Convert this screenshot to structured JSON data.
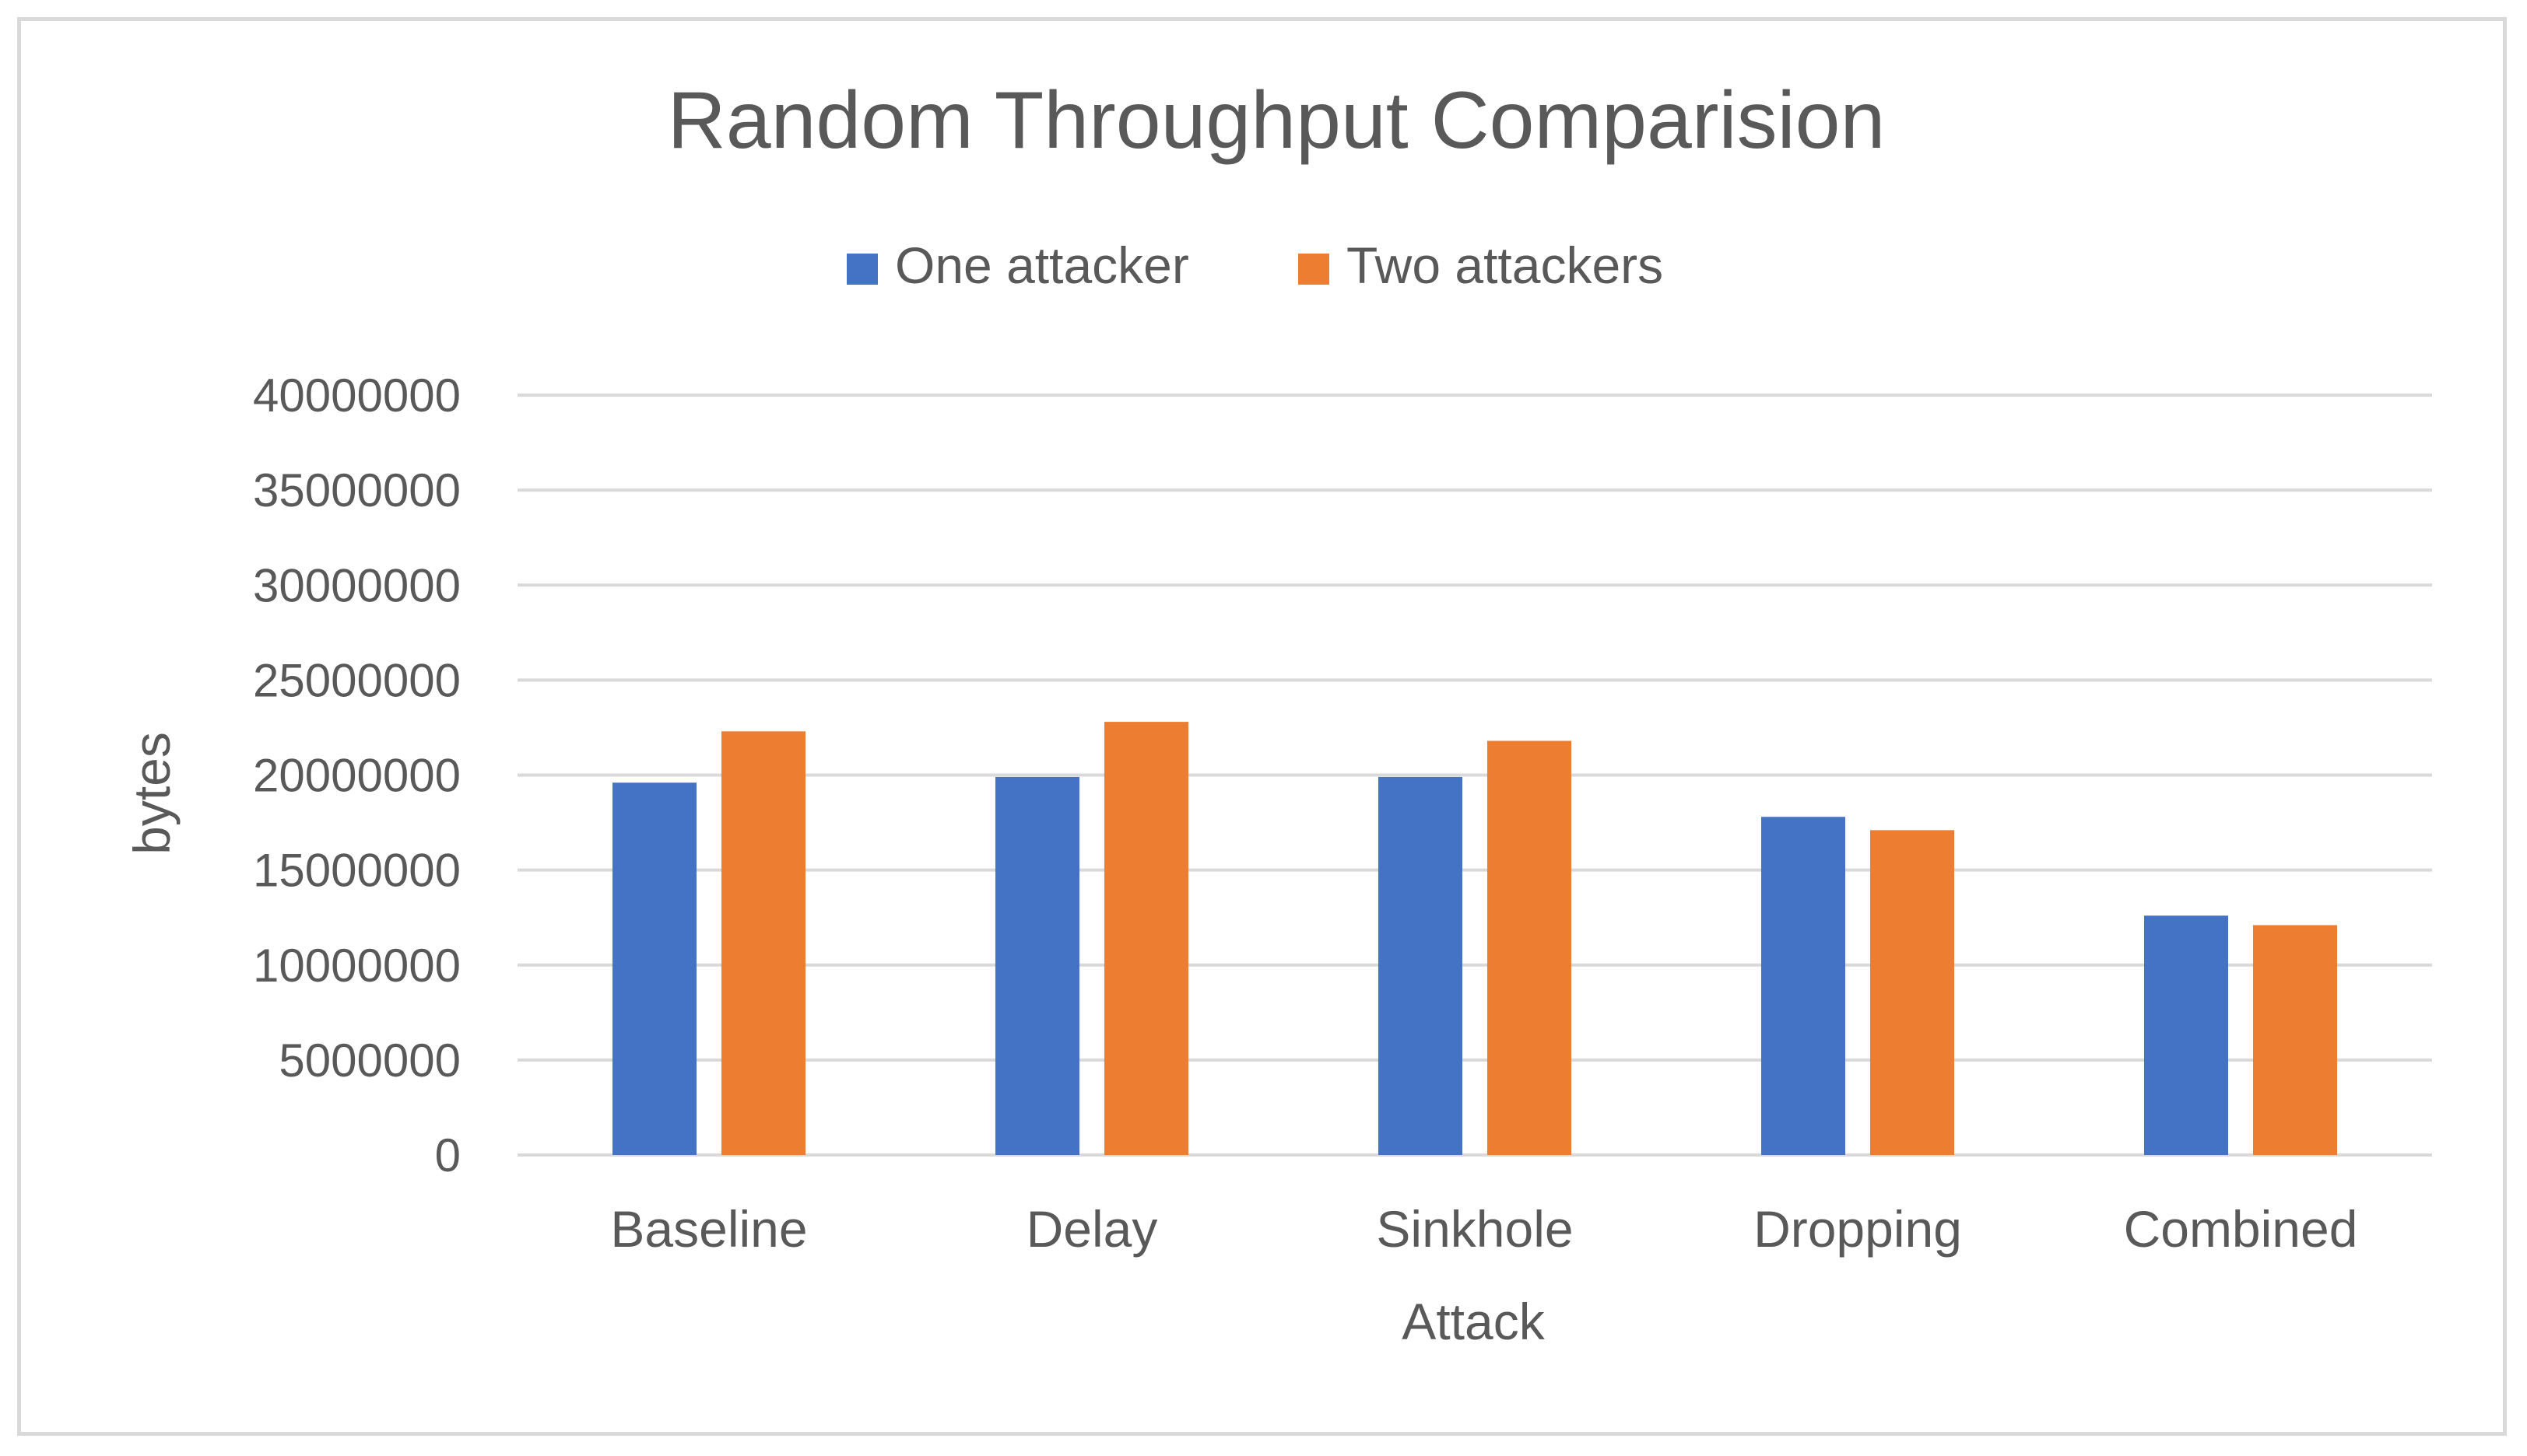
{
  "chart_data": {
    "type": "bar",
    "title": "Random Throughput Comparision",
    "xlabel": "Attack",
    "ylabel": "bytes",
    "categories": [
      "Baseline",
      "Delay",
      "Sinkhole",
      "Dropping",
      "Combined"
    ],
    "series": [
      {
        "name": "One attacker",
        "color": "#4472c4",
        "values": [
          19600000,
          19900000,
          19900000,
          17800000,
          12600000
        ]
      },
      {
        "name": "Two attackers",
        "color": "#ed7d31",
        "values": [
          22300000,
          22800000,
          21800000,
          17100000,
          12100000
        ]
      }
    ],
    "ylim": [
      0,
      40000000
    ],
    "yticks": [
      0,
      5000000,
      10000000,
      15000000,
      20000000,
      25000000,
      30000000,
      35000000,
      40000000
    ],
    "ytick_labels": [
      "0",
      "5000000",
      "10000000",
      "15000000",
      "20000000",
      "25000000",
      "30000000",
      "35000000",
      "40000000"
    ],
    "grid": true,
    "legend_position": "top"
  }
}
